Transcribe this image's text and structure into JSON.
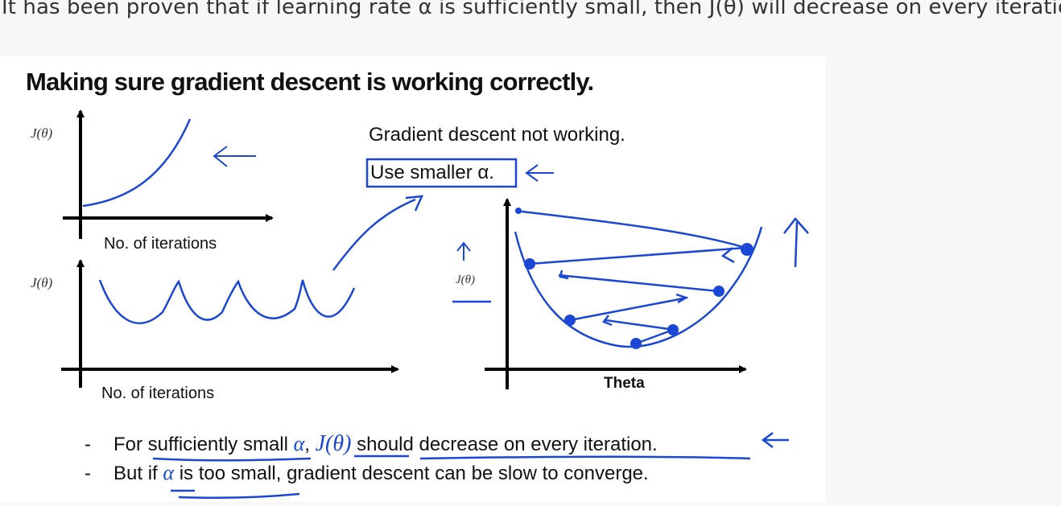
{
  "intro_text": "It has been proven that if learning rate α is sufficiently small, then J(θ) will decrease on every iteration.",
  "slide": {
    "title": "Making sure gradient descent is working correctly.",
    "plot_top": {
      "ylabel": "J(θ)",
      "xlabel": "No. of iterations"
    },
    "plot_bottom": {
      "ylabel": "J(θ)",
      "xlabel": "No. of iterations"
    },
    "plot_right": {
      "ylabel": "J(θ)",
      "xlabel": "Theta"
    },
    "note_line1": "Gradient descent not working.",
    "note_line2": "Use smaller α.",
    "bullets": [
      {
        "pre": "For sufficiently small",
        "alpha": "α",
        "mid": ",",
        "jtheta": "J(θ)",
        "post": "should decrease on every iteration."
      },
      {
        "pre": "But if",
        "alpha": "α",
        "post": "is too small, gradient descent can be slow to converge."
      }
    ]
  },
  "colors": {
    "ink": "#1a47d6",
    "text": "#111111",
    "intro": "#333333"
  }
}
